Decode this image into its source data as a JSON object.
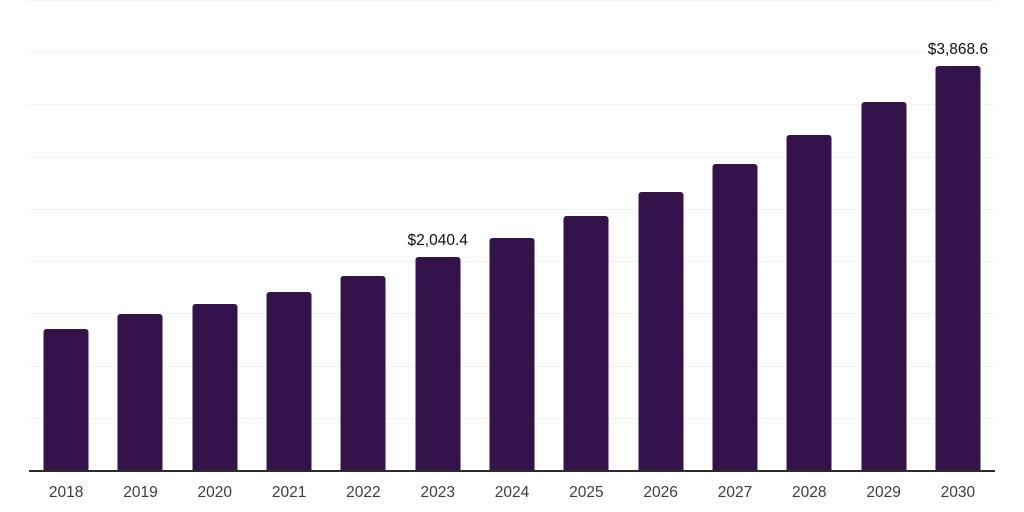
{
  "chart_data": {
    "type": "bar",
    "title": "",
    "xlabel": "",
    "ylabel": "",
    "categories": [
      "2018",
      "2019",
      "2020",
      "2021",
      "2022",
      "2023",
      "2024",
      "2025",
      "2026",
      "2027",
      "2028",
      "2029",
      "2030"
    ],
    "values": [
      1352,
      1490,
      1592,
      1706,
      1856,
      2040.4,
      2223,
      2430,
      2664,
      2932,
      3206,
      3522,
      3868.6
    ],
    "value_labels": [
      "",
      "",
      "",
      "",
      "",
      "$2,040.4",
      "",
      "",
      "",
      "",
      "",
      "",
      "$3,868.6"
    ],
    "labeled_points": [
      {
        "category": "2023",
        "label": "$2,040.4",
        "value": 2040.4
      },
      {
        "category": "2030",
        "label": "$3,868.6",
        "value": 3868.6
      }
    ],
    "ylim": [
      0,
      4500
    ],
    "gridline_step": 500,
    "grid": "horizontal",
    "y_tick_labels_visible": false,
    "legend": "none",
    "colors": {
      "bar": "#34124a",
      "gridline": "#f2f2f2",
      "axis": "#2b2b2b",
      "tick_label": "#3d3d3d",
      "value_label": "#111111",
      "background": "#ffffff"
    }
  }
}
